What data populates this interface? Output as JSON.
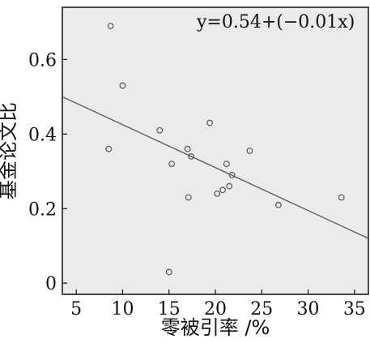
{
  "chart_data": {
    "type": "scatter",
    "title": "",
    "xlabel": "零被引率 /%",
    "ylabel": "基金论文比",
    "annotation": "y=0.54+(−0.01x)",
    "xlim": [
      3.5,
      36.5
    ],
    "ylim": [
      -0.03,
      0.74
    ],
    "xticks": [
      "5",
      "10",
      "15",
      "20",
      "25",
      "30",
      "35"
    ],
    "yticks": [
      "0",
      "0.2",
      "0.4",
      "0.6"
    ],
    "grid": false,
    "plot_background": "#ebebeb",
    "point_color": "#555555",
    "line_color": "#555555",
    "points": [
      {
        "x": 8.7,
        "y": 0.69
      },
      {
        "x": 10.0,
        "y": 0.53
      },
      {
        "x": 8.5,
        "y": 0.36
      },
      {
        "x": 14.0,
        "y": 0.41
      },
      {
        "x": 15.3,
        "y": 0.32
      },
      {
        "x": 15.0,
        "y": 0.03
      },
      {
        "x": 17.0,
        "y": 0.36
      },
      {
        "x": 17.4,
        "y": 0.34
      },
      {
        "x": 17.1,
        "y": 0.23
      },
      {
        "x": 19.4,
        "y": 0.43
      },
      {
        "x": 20.2,
        "y": 0.24
      },
      {
        "x": 20.8,
        "y": 0.25
      },
      {
        "x": 21.2,
        "y": 0.32
      },
      {
        "x": 21.5,
        "y": 0.26
      },
      {
        "x": 21.8,
        "y": 0.29
      },
      {
        "x": 23.7,
        "y": 0.355
      },
      {
        "x": 26.8,
        "y": 0.21
      },
      {
        "x": 33.6,
        "y": 0.23
      }
    ],
    "fit_line": [
      {
        "x": 3.5,
        "y": 0.5
      },
      {
        "x": 36.5,
        "y": 0.12
      }
    ]
  }
}
